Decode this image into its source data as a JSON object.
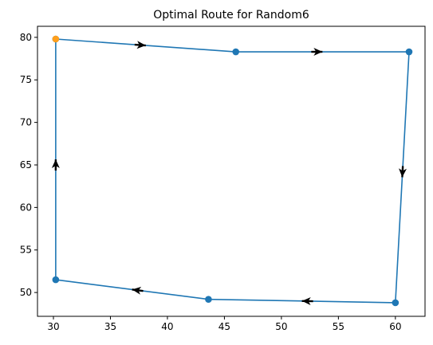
{
  "chart_data": {
    "type": "line",
    "title": "Optimal Route for Random6",
    "xlabel": "",
    "ylabel": "",
    "xlim": [
      28.6,
      62.6
    ],
    "ylim": [
      47.2,
      81.3
    ],
    "x_ticks": [
      30,
      35,
      40,
      45,
      50,
      55,
      60
    ],
    "y_ticks": [
      50,
      55,
      60,
      65,
      70,
      75,
      80
    ],
    "grid": false,
    "colors": {
      "line": "#1f77b4",
      "point": "#1f77b4",
      "start_point": "#ff9f1c",
      "arrow": "#000000"
    },
    "route": [
      {
        "x": 30.2,
        "y": 79.8
      },
      {
        "x": 46.0,
        "y": 78.3
      },
      {
        "x": 61.2,
        "y": 78.3
      },
      {
        "x": 60.0,
        "y": 48.8
      },
      {
        "x": 43.6,
        "y": 49.2
      },
      {
        "x": 30.2,
        "y": 51.5
      },
      {
        "x": 30.2,
        "y": 79.8
      }
    ],
    "start_index": 0
  }
}
